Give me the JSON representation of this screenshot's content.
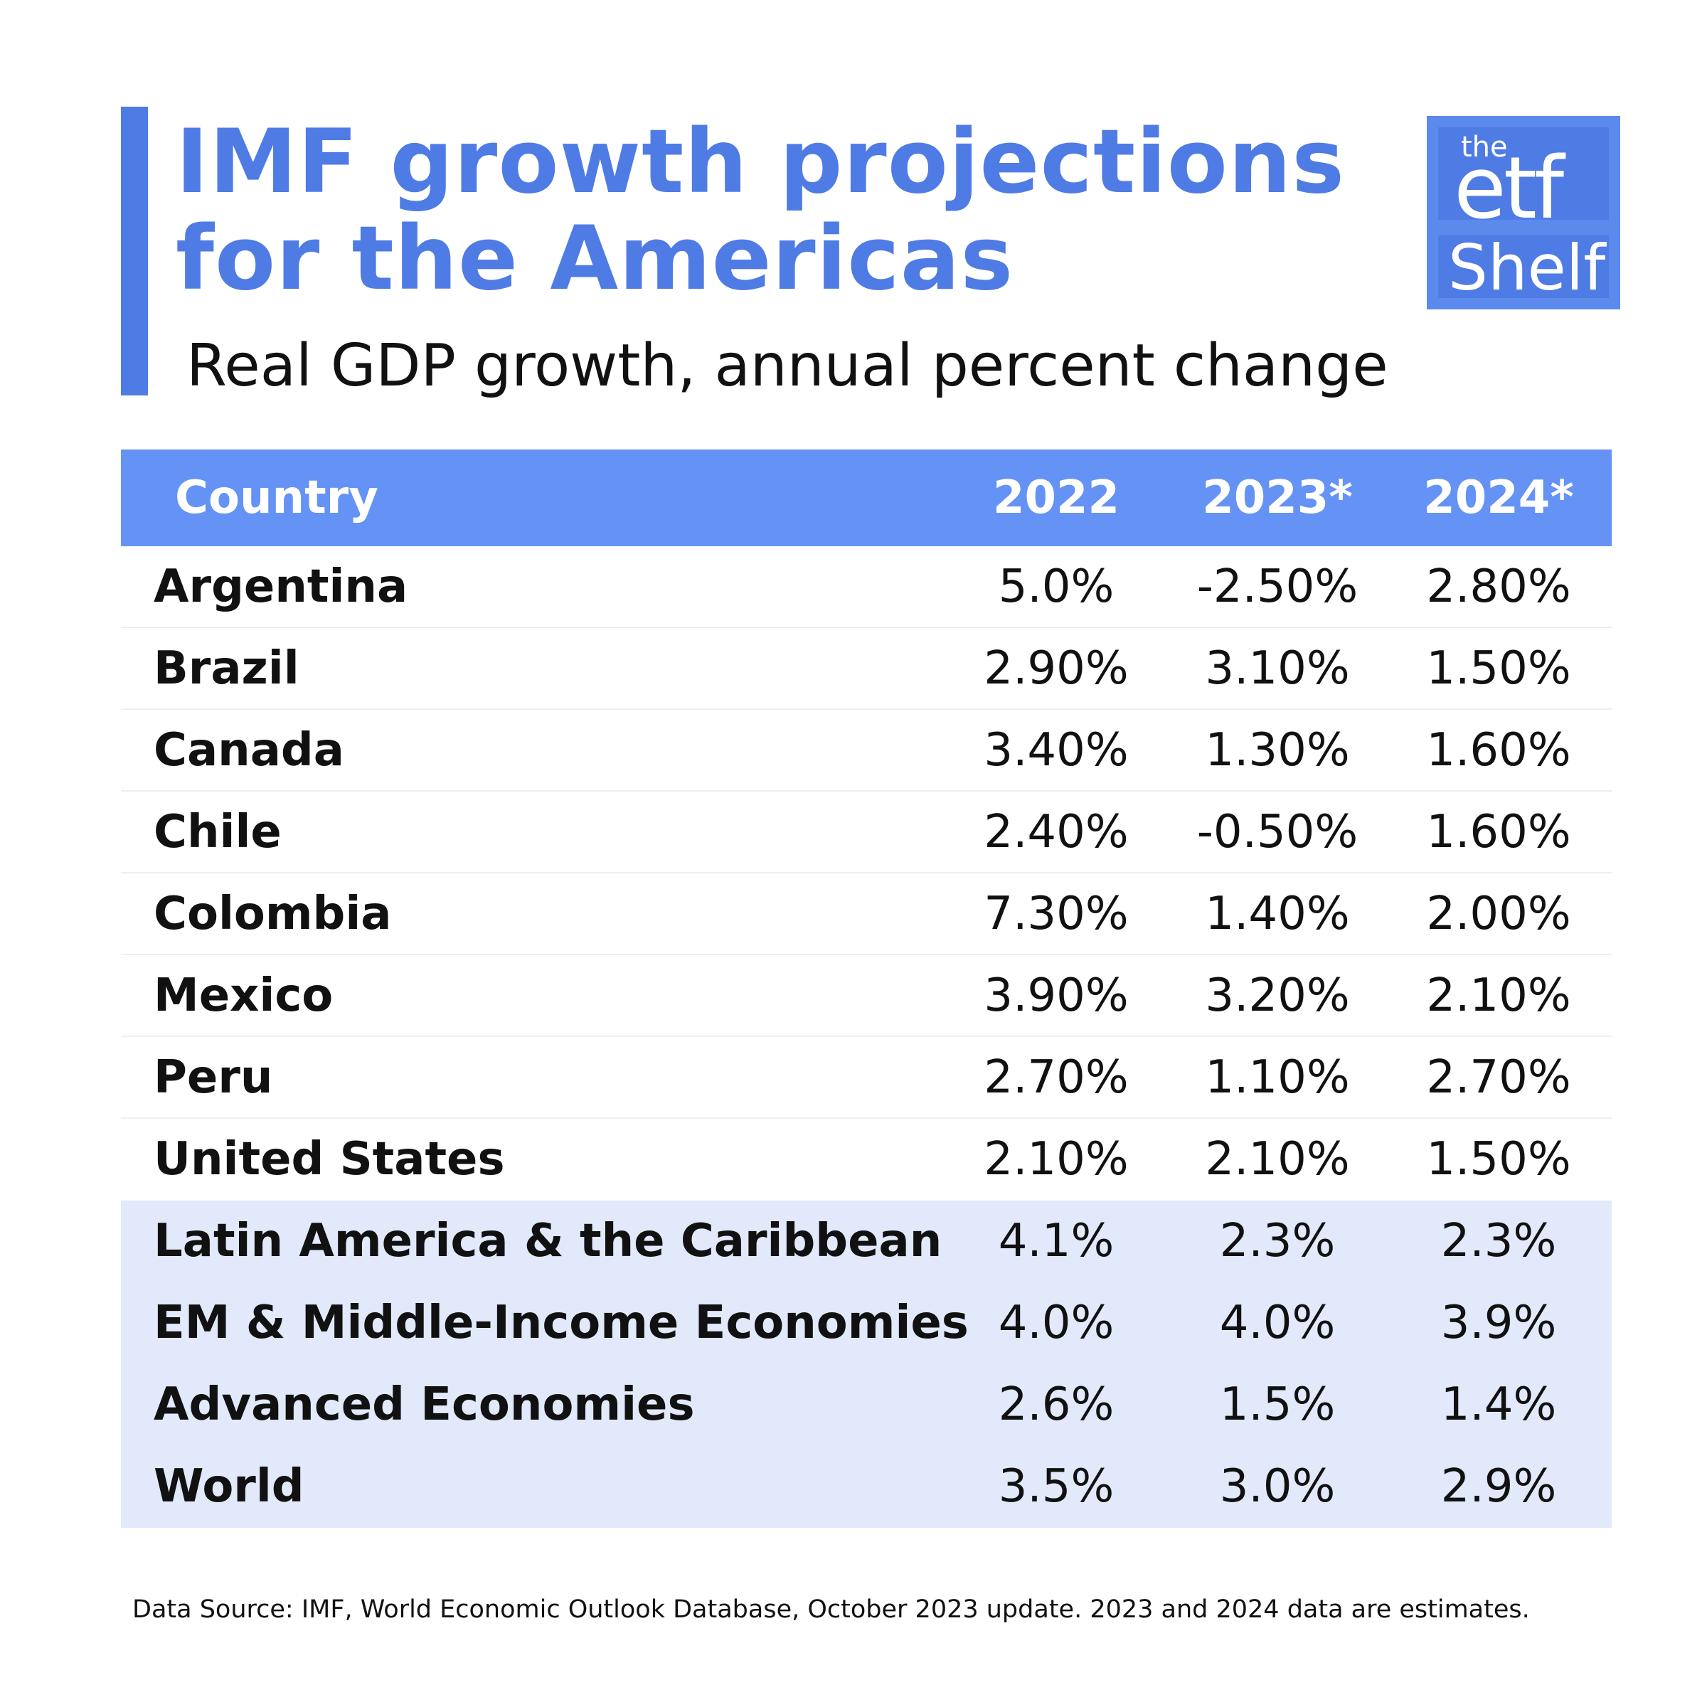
{
  "header": {
    "title_line1": "IMF growth projections",
    "title_line2": "for the Americas",
    "subtitle": "Real GDP growth, annual percent change"
  },
  "logo": {
    "line1": "the",
    "line2": "etf",
    "line3": "Shelf"
  },
  "colors": {
    "accent": "#4f7be4",
    "header_row": "#6592f5",
    "aggregate_row": "#e1e9fb"
  },
  "chart_data": {
    "type": "table",
    "columns": [
      "Country",
      "2022",
      "2023*",
      "2024*"
    ],
    "rows": [
      {
        "name": "Argentina",
        "values": [
          "5.0%",
          "-2.50%",
          "2.80%"
        ],
        "group": "country"
      },
      {
        "name": "Brazil",
        "values": [
          "2.90%",
          "3.10%",
          "1.50%"
        ],
        "group": "country"
      },
      {
        "name": "Canada",
        "values": [
          "3.40%",
          "1.30%",
          "1.60%"
        ],
        "group": "country"
      },
      {
        "name": "Chile",
        "values": [
          "2.40%",
          "-0.50%",
          "1.60%"
        ],
        "group": "country"
      },
      {
        "name": "Colombia",
        "values": [
          "7.30%",
          "1.40%",
          "2.00%"
        ],
        "group": "country"
      },
      {
        "name": "Mexico",
        "values": [
          "3.90%",
          "3.20%",
          "2.10%"
        ],
        "group": "country"
      },
      {
        "name": "Peru",
        "values": [
          "2.70%",
          "1.10%",
          "2.70%"
        ],
        "group": "country"
      },
      {
        "name": "United States",
        "values": [
          "2.10%",
          "2.10%",
          "1.50%"
        ],
        "group": "country"
      },
      {
        "name": "Latin America & the Caribbean",
        "values": [
          "4.1%",
          "2.3%",
          "2.3%"
        ],
        "group": "aggregate"
      },
      {
        "name": "EM & Middle-Income Economies",
        "values": [
          "4.0%",
          "4.0%",
          "3.9%"
        ],
        "group": "aggregate"
      },
      {
        "name": "Advanced Economies",
        "values": [
          "2.6%",
          "1.5%",
          "1.4%"
        ],
        "group": "aggregate"
      },
      {
        "name": "World",
        "values": [
          "3.5%",
          "3.0%",
          "2.9%"
        ],
        "group": "aggregate"
      }
    ]
  },
  "footnote": "Data Source: IMF, World Economic Outlook Database, October 2023 update. 2023 and 2024 data are estimates."
}
